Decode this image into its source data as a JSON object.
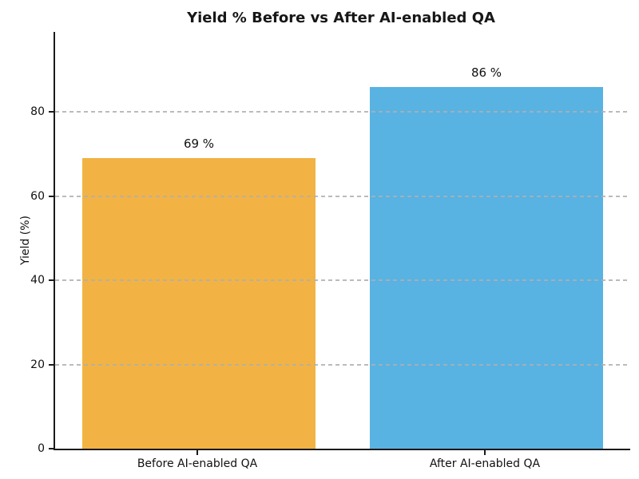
{
  "chart_data": {
    "type": "bar",
    "title": "Yield % Before vs After AI-enabled QA",
    "xlabel": "",
    "ylabel": "Yield (%)",
    "categories": [
      "Before AI-enabled QA",
      "After AI-enabled QA"
    ],
    "values": [
      69,
      86
    ],
    "value_labels": [
      "69 %",
      "86 %"
    ],
    "bar_colors": [
      "#F2B344",
      "#58B2E2"
    ],
    "yticks": [
      0,
      20,
      40,
      60,
      80
    ],
    "ylim": [
      0,
      99
    ],
    "grid": "horizontal dashed gray, drawn over bars",
    "legend_position": "none",
    "background_color": "#ffffff"
  }
}
